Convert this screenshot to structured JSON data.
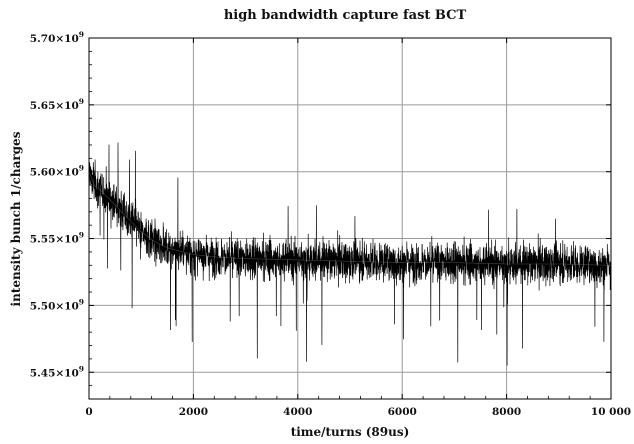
{
  "chart_data": {
    "type": "line",
    "title": "high bandwidth capture fast BCT",
    "xlabel": "time/turns (89us)",
    "ylabel": "intensity bunch 1/charges",
    "xlim": [
      0,
      10000
    ],
    "ylim": [
      5430000000.0,
      5700000000.0
    ],
    "x_ticks": [
      0,
      2000,
      4000,
      6000,
      8000,
      10000
    ],
    "x_tick_labels": [
      "0",
      "2000",
      "4000",
      "6000",
      "8000",
      "10 000"
    ],
    "y_ticks": [
      5450000000.0,
      5500000000.0,
      5550000000.0,
      5600000000.0,
      5650000000.0,
      5700000000.0
    ],
    "y_tick_labels": [
      {
        "mantissa": "5.45",
        "exponent": "9"
      },
      {
        "mantissa": "5.50",
        "exponent": "9"
      },
      {
        "mantissa": "5.55",
        "exponent": "9"
      },
      {
        "mantissa": "5.60",
        "exponent": "9"
      },
      {
        "mantissa": "5.65",
        "exponent": "9"
      },
      {
        "mantissa": "5.70",
        "exponent": "9"
      }
    ],
    "grid": true,
    "series": [
      {
        "color": "#000000",
        "x": [
          0,
          100,
          250,
          500,
          750,
          1000,
          1250,
          1500,
          2000,
          2500,
          3000,
          4000,
          5000,
          6000,
          7000,
          8000,
          9000,
          10000
        ],
        "y": [
          5600000000.0,
          5590000000.0,
          5585000000.0,
          5575000000.0,
          5565000000.0,
          5555000000.0,
          5548000000.0,
          5543000000.0,
          5538000000.0,
          5536000000.0,
          5535000000.0,
          5534000000.0,
          5533000000.0,
          5532000000.0,
          5532000000.0,
          5531000000.0,
          5531000000.0,
          5530000000.0
        ],
        "noise_sd": 12000000.0
      }
    ]
  }
}
